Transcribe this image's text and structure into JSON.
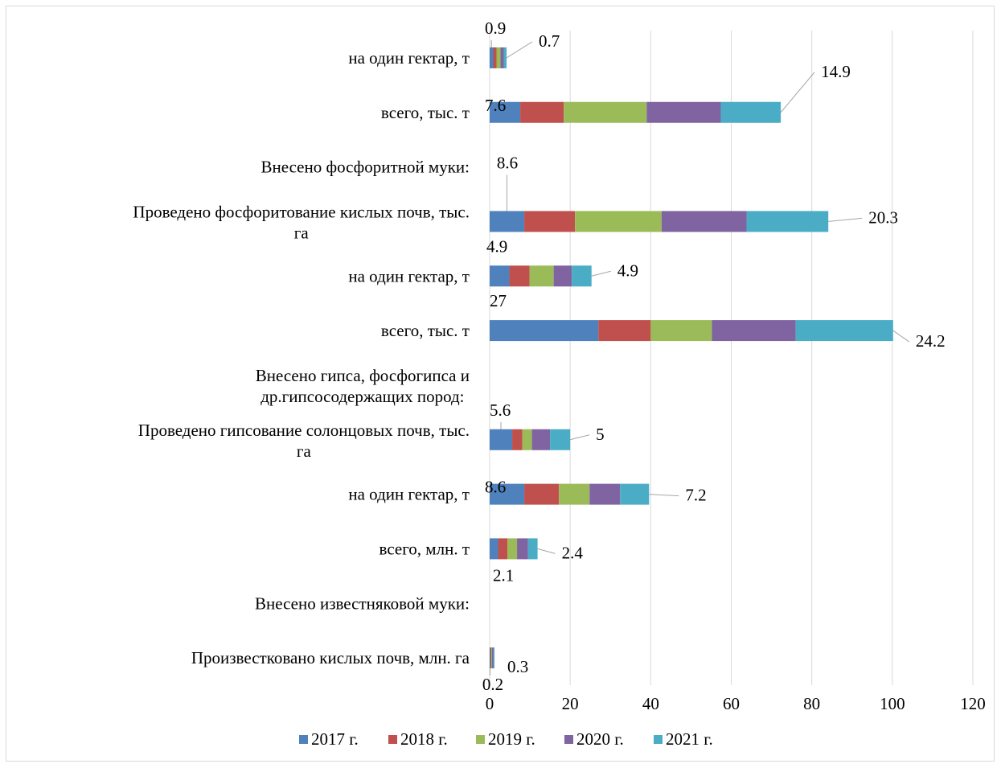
{
  "chart_data": {
    "type": "bar",
    "orientation": "horizontal",
    "stacked": true,
    "categories": [
      "Произвестковано кислых почв, млн. га",
      "Внесено известняковой муки:",
      "всего, млн. т",
      "на один гектар, т",
      "Проведено гипсование солонцовых почв, тыс. га",
      "Внесено гипса, фосфогипса и др.гипсосодержащих пород:",
      "всего, тыс. т",
      "на один гектар, т",
      "Проведено фосфоритование кислых почв, тыс. га",
      "Внесено фосфоритной муки:",
      "всего, тыс. т",
      "на один гектар, т"
    ],
    "series": [
      {
        "name": "2017 г.",
        "color": "#4F81BD",
        "values": [
          0.2,
          null,
          2.1,
          8.6,
          5.6,
          null,
          27,
          4.9,
          8.6,
          null,
          7.6,
          0.9
        ]
      },
      {
        "name": "2018 г.",
        "color": "#C0504D",
        "values": [
          0.2,
          null,
          2.3,
          8.6,
          2.5,
          null,
          13,
          5.0,
          12.6,
          null,
          10.8,
          0.8
        ]
      },
      {
        "name": "2019 г.",
        "color": "#9BBB59",
        "values": [
          0.2,
          null,
          2.4,
          7.6,
          2.4,
          null,
          15.2,
          6.0,
          21.5,
          null,
          20.6,
          1.0
        ]
      },
      {
        "name": "2020 г.",
        "color": "#8064A2",
        "values": [
          0.3,
          null,
          2.7,
          7.6,
          4.5,
          null,
          20.8,
          4.5,
          21.1,
          null,
          18.4,
          0.8
        ]
      },
      {
        "name": "2021 г.",
        "color": "#4BACC6",
        "values": [
          0.3,
          null,
          2.4,
          7.2,
          5,
          null,
          24.2,
          4.9,
          20.3,
          null,
          14.9,
          0.7
        ]
      }
    ],
    "data_labels": [
      {
        "category": 0,
        "series": 0,
        "text": "0.2"
      },
      {
        "category": 0,
        "series": 4,
        "text": "0.3"
      },
      {
        "category": 2,
        "series": 0,
        "text": "2.1"
      },
      {
        "category": 2,
        "series": 4,
        "text": "2.4"
      },
      {
        "category": 3,
        "series": 0,
        "text": "8.6"
      },
      {
        "category": 3,
        "series": 4,
        "text": "7.2"
      },
      {
        "category": 4,
        "series": 0,
        "text": "5.6"
      },
      {
        "category": 4,
        "series": 4,
        "text": "5"
      },
      {
        "category": 6,
        "series": 0,
        "text": "27"
      },
      {
        "category": 6,
        "series": 4,
        "text": "24.2"
      },
      {
        "category": 7,
        "series": 0,
        "text": "4.9"
      },
      {
        "category": 7,
        "series": 4,
        "text": "4.9"
      },
      {
        "category": 8,
        "series": 0,
        "text": "8.6"
      },
      {
        "category": 8,
        "series": 4,
        "text": "20.3"
      },
      {
        "category": 10,
        "series": 0,
        "text": "7.6"
      },
      {
        "category": 10,
        "series": 4,
        "text": "14.9"
      },
      {
        "category": 11,
        "series": 0,
        "text": "0.9"
      },
      {
        "category": 11,
        "series": 4,
        "text": "0.7"
      }
    ],
    "xlim": [
      0,
      120
    ],
    "xticks": [
      0,
      20,
      40,
      60,
      80,
      100,
      120
    ],
    "xtick_labels": [
      "0",
      "20",
      "40",
      "60",
      "80",
      "100",
      "120"
    ],
    "grid": "vertical",
    "legend": "bottom",
    "title": "",
    "xlabel": "",
    "ylabel": ""
  }
}
